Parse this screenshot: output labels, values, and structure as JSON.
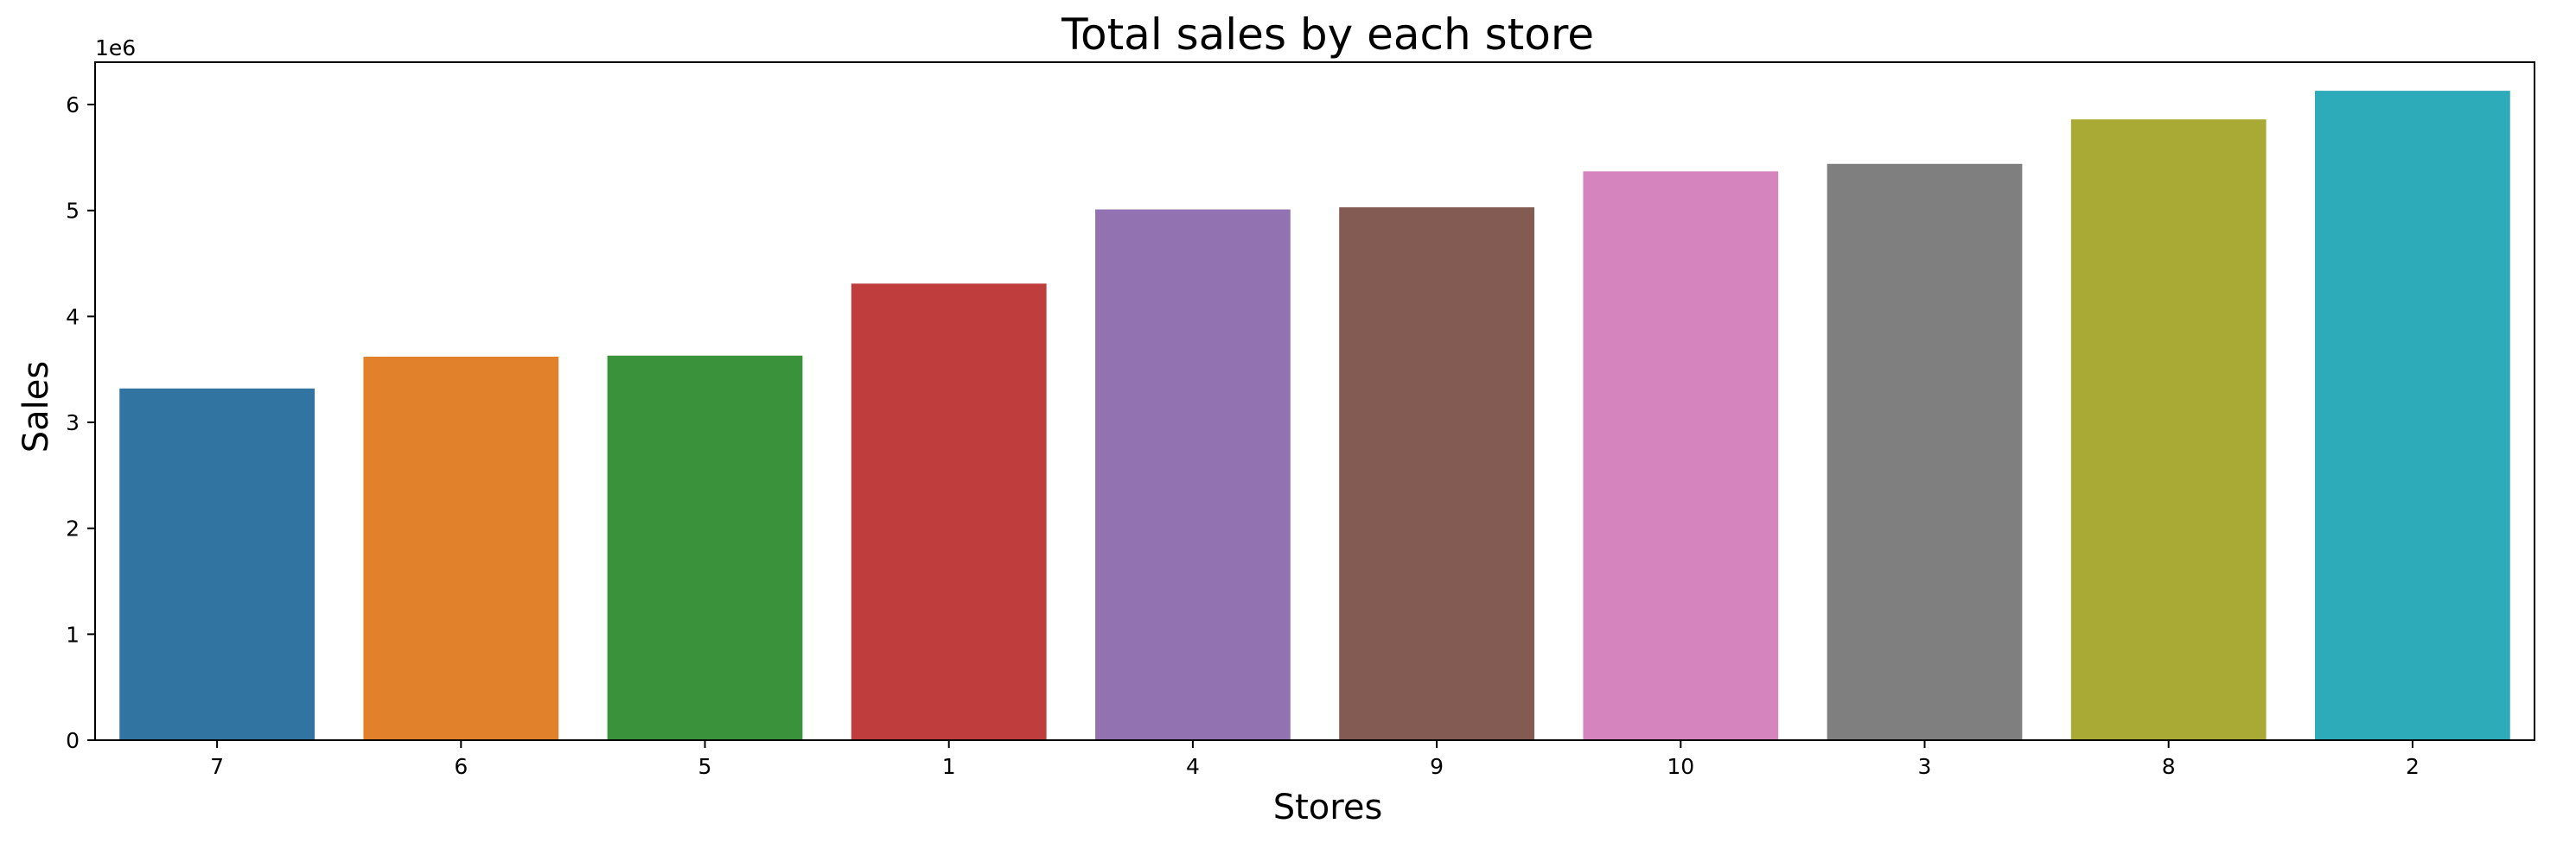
{
  "chart_data": {
    "type": "bar",
    "title": "Total sales by each store",
    "xlabel": "Stores",
    "ylabel": "Sales",
    "y_offset_label": "1e6",
    "categories": [
      "7",
      "6",
      "5",
      "1",
      "4",
      "9",
      "10",
      "3",
      "8",
      "2"
    ],
    "values": [
      3.32,
      3.62,
      3.63,
      4.31,
      5.01,
      5.03,
      5.37,
      5.44,
      5.86,
      6.13
    ],
    "value_scale": 1000000,
    "ylim": [
      0,
      6.4
    ],
    "yticks": [
      0,
      1,
      2,
      3,
      4,
      5,
      6
    ],
    "grid": false,
    "colors": [
      "#3274a1",
      "#e1812c",
      "#3a923a",
      "#c03d3e",
      "#9372b2",
      "#845b53",
      "#d684bd",
      "#7f7f7f",
      "#a9aa35",
      "#2eabb8"
    ]
  }
}
